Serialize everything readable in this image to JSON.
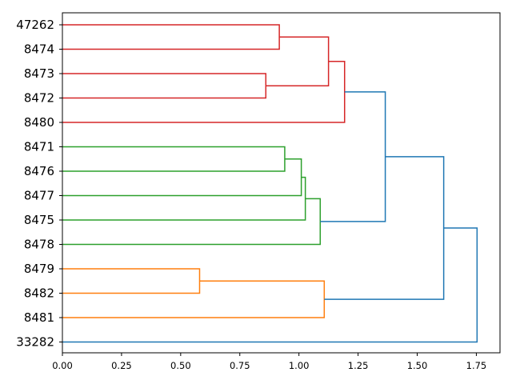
{
  "chart_data": {
    "type": "dendrogram",
    "orientation": "right",
    "leaves": [
      "47262",
      "8474",
      "8473",
      "8472",
      "8480",
      "8471",
      "8476",
      "8477",
      "8475",
      "8478",
      "8479",
      "8482",
      "8481",
      "33282"
    ],
    "xlim": [
      0,
      1.85
    ],
    "xticks": [
      0.0,
      0.25,
      0.5,
      0.75,
      1.0,
      1.25,
      1.5,
      1.75
    ],
    "xtick_labels": [
      "0.00",
      "0.25",
      "0.50",
      "0.75",
      "1.00",
      "1.25",
      "1.50",
      "1.75"
    ],
    "colors": {
      "red": "#d62728",
      "green": "#2ca02c",
      "orange": "#ff7f0e",
      "blue": "#1f77b4"
    },
    "merges": [
      {
        "id": "m1",
        "children": [
          "8473",
          "8472"
        ],
        "height": 0.86,
        "color": "red"
      },
      {
        "id": "m2",
        "children": [
          "47262",
          "8474"
        ],
        "height": 0.917,
        "color": "red"
      },
      {
        "id": "m3",
        "children": [
          "m2",
          "m1"
        ],
        "height": 1.125,
        "color": "red"
      },
      {
        "id": "m4",
        "children": [
          "m3",
          "8480"
        ],
        "height": 1.193,
        "color": "red"
      },
      {
        "id": "m5",
        "children": [
          "8471",
          "8476"
        ],
        "height": 0.94,
        "color": "green"
      },
      {
        "id": "m6",
        "children": [
          "m5",
          "8477"
        ],
        "height": 1.01,
        "color": "green"
      },
      {
        "id": "m7",
        "children": [
          "m6",
          "8475"
        ],
        "height": 1.027,
        "color": "green"
      },
      {
        "id": "m8",
        "children": [
          "m7",
          "8478"
        ],
        "height": 1.09,
        "color": "green"
      },
      {
        "id": "m9",
        "children": [
          "m4",
          "m8"
        ],
        "height": 1.365,
        "color": "blue"
      },
      {
        "id": "m10",
        "children": [
          "8479",
          "8482"
        ],
        "height": 0.58,
        "color": "orange"
      },
      {
        "id": "m11",
        "children": [
          "m10",
          "8481"
        ],
        "height": 1.107,
        "color": "orange"
      },
      {
        "id": "m12",
        "children": [
          "m9",
          "m11"
        ],
        "height": 1.612,
        "color": "blue"
      },
      {
        "id": "m13",
        "children": [
          "m12",
          "33282"
        ],
        "height": 1.753,
        "color": "blue"
      }
    ]
  }
}
